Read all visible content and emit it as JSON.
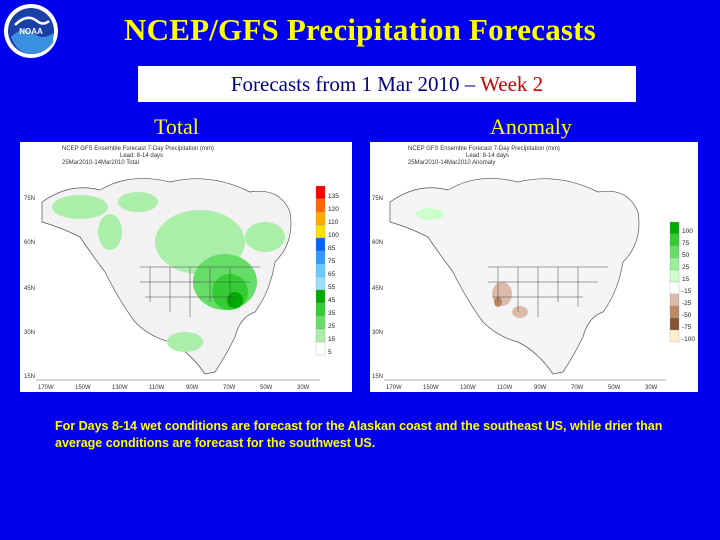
{
  "slide": {
    "title": "NCEP/GFS Precipitation Forecasts",
    "subtitle_prefix": "Forecasts from 1 Mar 2010 – ",
    "subtitle_week": "Week 2",
    "logo_text": "NOAA"
  },
  "panels": [
    {
      "label": "Total",
      "map_header": [
        "NCEP GFS Ensemble Forecast 7-Day Precipitation (mm)",
        "Lead: 8-14 days",
        "25Mar2010-14Mar2010 Total"
      ],
      "legend": [
        "135",
        "120",
        "110",
        "100",
        "85",
        "75",
        "65",
        "55",
        "45",
        "35",
        "25",
        "15",
        "5"
      ],
      "legend_colors": [
        "#ff0000",
        "#ff6600",
        "#ffaa00",
        "#ffe000",
        "#0066ff",
        "#3399ff",
        "#66ccff",
        "#99ddff",
        "#00aa00",
        "#33cc33",
        "#66dd66",
        "#aaeeaa",
        "#ffffff"
      ]
    },
    {
      "label": "Anomaly",
      "map_header": [
        "NCEP GFS Ensemble Forecast 7-Day Precipitation (mm)",
        "Lead: 8-14 days",
        "25Mar2010-14Mar2010 Anomaly"
      ],
      "legend": [
        "100",
        "75",
        "50",
        "25",
        "15",
        "-15",
        "-25",
        "-50",
        "-75",
        "-100"
      ],
      "legend_colors": [
        "#00aa00",
        "#33cc33",
        "#66dd66",
        "#99ee99",
        "#ccffcc",
        "#ffffff",
        "#ddbbaa",
        "#bb8866",
        "#885533",
        "#ffeecc"
      ]
    }
  ],
  "axes": {
    "lat_labels": [
      "75N",
      "60N",
      "45N",
      "30N",
      "15N"
    ],
    "lon_labels": [
      "170W",
      "150W",
      "130W",
      "110W",
      "90W",
      "70W",
      "50W",
      "30W"
    ]
  },
  "caption": {
    "part1": "For ",
    "highlight": "Days 8-14",
    "part2": " wet conditions are forecast for the Alaskan coast and the southeast US, while drier than average conditions are forecast for the southwest US."
  }
}
